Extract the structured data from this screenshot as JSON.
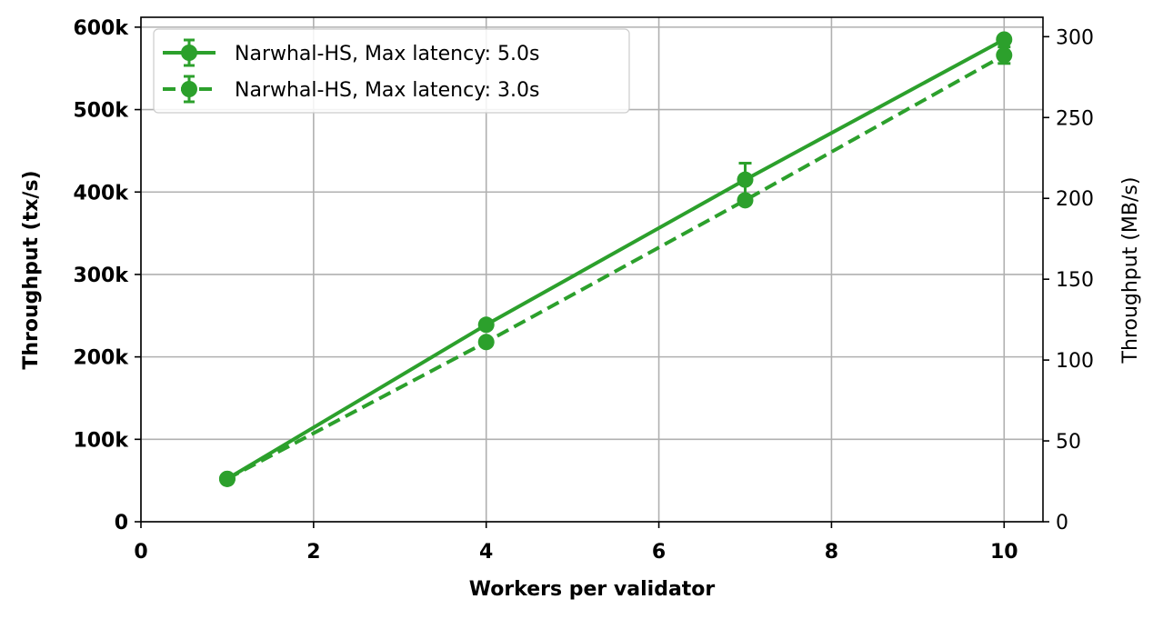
{
  "chart_data": {
    "type": "line",
    "xlabel": "Workers per validator",
    "ylabel": "Throughput (tx/s)",
    "ylabel_right": "Throughput (MB/s)",
    "xlim": [
      0,
      10.45
    ],
    "ylim": [
      0,
      612000
    ],
    "ylim_right": [
      0,
      312
    ],
    "xticks": [
      0,
      2,
      4,
      6,
      8,
      10
    ],
    "xtick_labels": [
      "0",
      "2",
      "4",
      "6",
      "8",
      "10"
    ],
    "yticks": [
      0,
      100000,
      200000,
      300000,
      400000,
      500000,
      600000
    ],
    "ytick_labels": [
      "0",
      "100k",
      "200k",
      "300k",
      "400k",
      "500k",
      "600k"
    ],
    "yticks_right": [
      0,
      50,
      100,
      150,
      200,
      250,
      300
    ],
    "ytick_labels_right": [
      "0",
      "50",
      "100",
      "150",
      "200",
      "250",
      "300"
    ],
    "grid": true,
    "legend_position": "top-left",
    "color": "#2ca02c",
    "series": [
      {
        "name": "Narwhal-HS, Max latency: 5.0s",
        "style": "solid",
        "x": [
          1,
          4,
          7,
          10
        ],
        "y": [
          52000,
          239000,
          415000,
          585000
        ],
        "err": [
          0,
          0,
          20000,
          0
        ]
      },
      {
        "name": "Narwhal-HS, Max latency: 3.0s",
        "style": "dashed",
        "x": [
          1,
          4,
          7,
          10
        ],
        "y": [
          52000,
          218000,
          390000,
          566000
        ],
        "err": [
          0,
          0,
          0,
          10000
        ]
      }
    ]
  }
}
